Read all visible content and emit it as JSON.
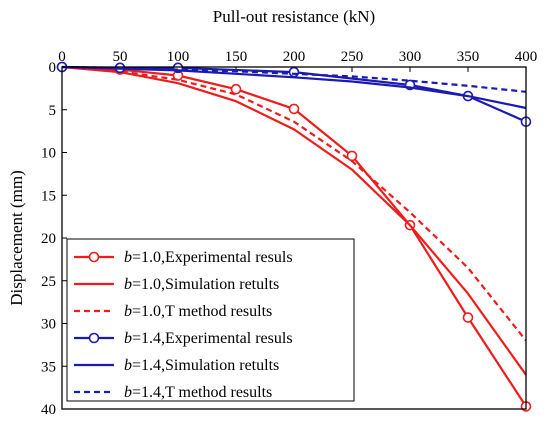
{
  "chart_data": {
    "type": "line",
    "xlabel": "Pull-out resistance (kN)",
    "ylabel": "Displacement (mm)",
    "xlim": [
      0,
      400
    ],
    "ylim": [
      0,
      40
    ],
    "y_inverted": true,
    "x_axis_position": "top",
    "grid": false,
    "legend_position": "bottom-left",
    "x_ticks": [
      "0",
      "50",
      "100",
      "150",
      "200",
      "250",
      "300",
      "350",
      "400"
    ],
    "y_ticks": [
      "0",
      "5",
      "10",
      "15",
      "20",
      "25",
      "30",
      "35",
      "40"
    ],
    "series": [
      {
        "name_prefix": "b",
        "name_suffix": "=1.0,Experimental resuls",
        "color": "#ee1c1c",
        "style": "solid",
        "marker": "circle",
        "x": [
          0,
          50,
          100,
          150,
          200,
          250,
          300,
          350,
          400
        ],
        "y": [
          0,
          0.3,
          1.0,
          2.6,
          4.9,
          10.4,
          18.5,
          29.3,
          39.7
        ]
      },
      {
        "name_prefix": "b",
        "name_suffix": "=1.0,Simulation retults",
        "color": "#ee1c1c",
        "style": "solid",
        "marker": "none",
        "x": [
          0,
          50,
          100,
          150,
          200,
          250,
          300,
          350,
          400
        ],
        "y": [
          0,
          0.6,
          1.9,
          4.0,
          7.3,
          12.0,
          18.5,
          26.5,
          36.0
        ]
      },
      {
        "name_prefix": "b",
        "name_suffix": "=1.0,T method results",
        "color": "#ee1c1c",
        "style": "dashed",
        "marker": "none",
        "x": [
          0,
          50,
          100,
          150,
          200,
          250,
          300,
          350,
          400
        ],
        "y": [
          0,
          0.5,
          1.5,
          3.2,
          6.4,
          11.0,
          17.0,
          23.5,
          32.0
        ]
      },
      {
        "name_prefix": "b",
        "name_suffix": "=1.4,Experimental resuls",
        "color": "#1b1bb4",
        "style": "solid",
        "marker": "circle",
        "x": [
          0,
          50,
          100,
          200,
          300,
          350,
          400
        ],
        "y": [
          0,
          0.1,
          0.1,
          0.6,
          2.1,
          3.4,
          6.4
        ]
      },
      {
        "name_prefix": "b",
        "name_suffix": "=1.4,Simulation retults",
        "color": "#1b1bb4",
        "style": "solid",
        "marker": "none",
        "x": [
          0,
          50,
          100,
          150,
          200,
          250,
          300,
          350,
          400
        ],
        "y": [
          0,
          0.2,
          0.4,
          0.8,
          1.2,
          1.7,
          2.4,
          3.4,
          4.8
        ]
      },
      {
        "name_prefix": "b",
        "name_suffix": "=1.4,T method results",
        "color": "#1b1bb4",
        "style": "dashed",
        "marker": "none",
        "x": [
          0,
          50,
          100,
          150,
          200,
          250,
          300,
          350,
          400
        ],
        "y": [
          0,
          0.1,
          0.3,
          0.5,
          0.8,
          1.1,
          1.6,
          2.2,
          2.9
        ]
      }
    ]
  }
}
